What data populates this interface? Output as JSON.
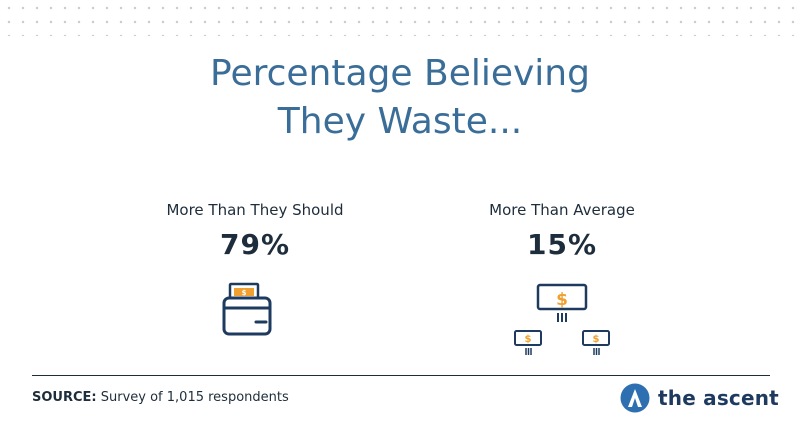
{
  "title": {
    "line1": "Percentage Believing",
    "line2": "They Waste..."
  },
  "chart_data": {
    "type": "table",
    "title": "Percentage Believing They Waste...",
    "categories": [
      "More Than They Should",
      "More Than Average"
    ],
    "values": [
      79,
      15
    ],
    "value_labels": [
      "79%",
      "15%"
    ],
    "unit": "%"
  },
  "icons": {
    "stat_a": "wallet-with-cash-icon",
    "stat_b": "dollar-signs-icon"
  },
  "colors": {
    "title": "#3a6e98",
    "text": "#1e2d3b",
    "icon_stroke": "#1e3a5f",
    "icon_accent": "#f0a030"
  },
  "footer": {
    "source_label": "SOURCE:",
    "source_text": "Survey of 1,015 respondents",
    "brand": "the ascent"
  }
}
